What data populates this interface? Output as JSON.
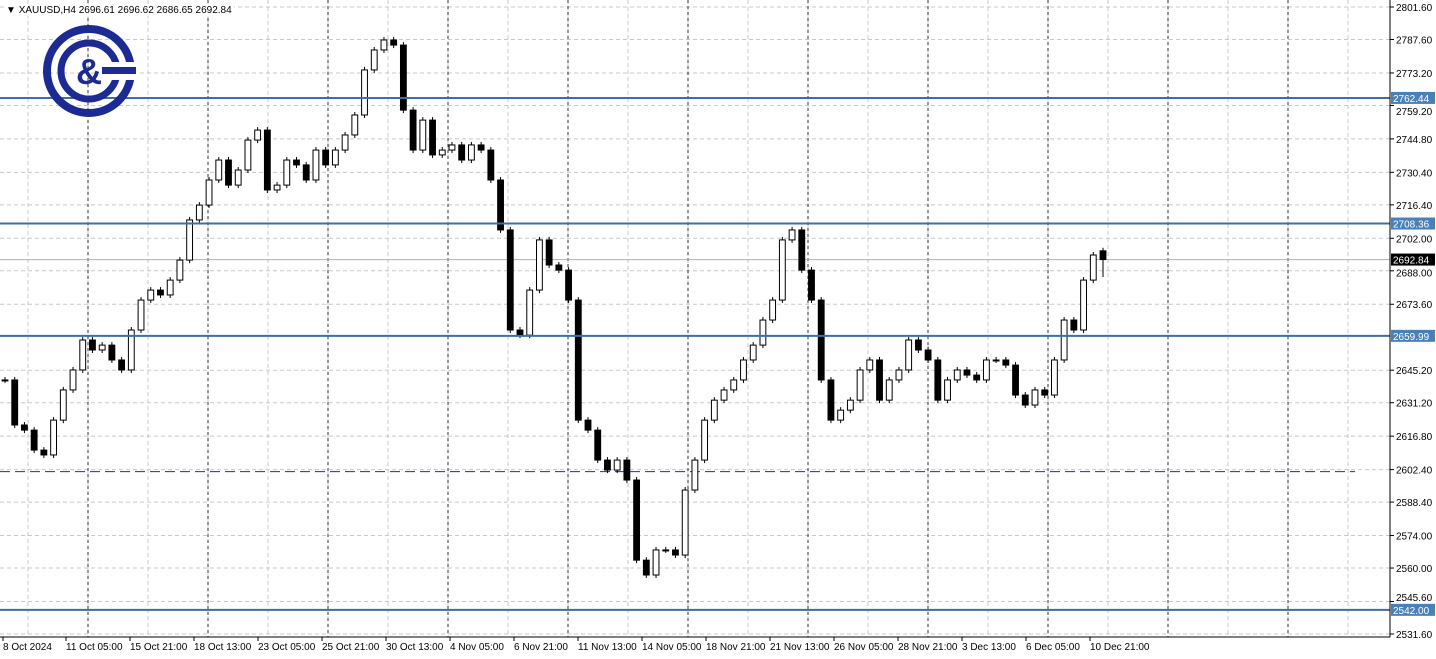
{
  "header": {
    "symbol": "XAUUSD,H4",
    "open": "2696.61",
    "high": "2696.62",
    "low": "2686.65",
    "close": "2692.84"
  },
  "colors": {
    "level_line": "#3d6fa6",
    "level_label_bg": "#4a80b8",
    "current_price_bg": "#000000",
    "dashed_line": "#1f2fa8",
    "logo": "#1c2a94",
    "grid": "#c8c8c8"
  },
  "logo": {
    "text": "C&G"
  },
  "chart_data": {
    "type": "candlestick",
    "title": "XAUUSD,H4",
    "ylim": [
      2531.6,
      2801.6
    ],
    "y_ticks": [
      "2801.60",
      "2787.60",
      "2773.20",
      "2759.20",
      "2744.80",
      "2730.40",
      "2716.40",
      "2702.00",
      "2688.00",
      "2673.60",
      "2645.20",
      "2631.20",
      "2616.80",
      "2602.40",
      "2588.40",
      "2574.00",
      "2560.00",
      "2545.60",
      "2531.60"
    ],
    "x_ticks": [
      "8 Oct 2024",
      "11 Oct 05:00",
      "15 Oct 21:00",
      "18 Oct 13:00",
      "23 Oct 05:00",
      "25 Oct 21:00",
      "30 Oct 13:00",
      "4 Nov 05:00",
      "6 Nov 21:00",
      "11 Nov 13:00",
      "14 Nov 05:00",
      "18 Nov 21:00",
      "21 Nov 13:00",
      "26 Nov 05:00",
      "28 Nov 21:00",
      "3 Dec 13:00",
      "6 Dec 05:00",
      "10 Dec 21:00"
    ],
    "grid": true,
    "horizontal_levels": [
      2762.44,
      2708.36,
      2659.99,
      2542.0
    ],
    "level_labels": [
      "2762.44",
      "2708.36",
      "2659.99",
      "2542.00"
    ],
    "dashed_level": 2601.5,
    "current_price": 2692.84,
    "current_price_label": "2692.84",
    "last_bar": {
      "open": 2696.61,
      "high": 2696.62,
      "low": 2686.65,
      "close": 2692.84
    },
    "closes": [
      2641.0,
      2621.6,
      2619.4,
      2610.8,
      2608.7,
      2623.7,
      2636.7,
      2645.3,
      2658.2,
      2653.9,
      2656.0,
      2649.6,
      2645.3,
      2662.5,
      2675.4,
      2679.7,
      2677.6,
      2684.0,
      2692.6,
      2709.9,
      2716.3,
      2727.1,
      2735.7,
      2724.9,
      2731.4,
      2744.3,
      2748.6,
      2722.8,
      2724.9,
      2735.7,
      2733.6,
      2727.1,
      2740.0,
      2733.6,
      2740.0,
      2746.5,
      2755.1,
      2774.5,
      2783.1,
      2787.4,
      2785.2,
      2757.2,
      2740.0,
      2752.9,
      2737.9,
      2740.0,
      2742.2,
      2735.7,
      2742.2,
      2740.0,
      2727.1,
      2705.6,
      2662.5,
      2660.3,
      2679.7,
      2701.3,
      2690.5,
      2688.3,
      2675.4,
      2623.7,
      2619.4,
      2606.5,
      2602.2,
      2606.5,
      2597.9,
      2563.4,
      2557.0,
      2567.8,
      2567.8,
      2565.6,
      2593.6,
      2606.5,
      2623.7,
      2632.3,
      2636.7,
      2641.0,
      2649.6,
      2656.0,
      2666.8,
      2675.4,
      2701.3,
      2705.6,
      2688.3,
      2675.4,
      2641.0,
      2623.7,
      2628.0,
      2632.3,
      2645.3,
      2649.6,
      2632.3,
      2641.0,
      2645.3,
      2658.2,
      2653.9,
      2649.6,
      2632.3,
      2641.0,
      2645.3,
      2643.1,
      2641.0,
      2649.6,
      2649.6,
      2647.4,
      2634.5,
      2630.2,
      2636.7,
      2634.5,
      2649.6,
      2666.8,
      2662.5,
      2684.0,
      2694.8,
      2692.84
    ]
  }
}
